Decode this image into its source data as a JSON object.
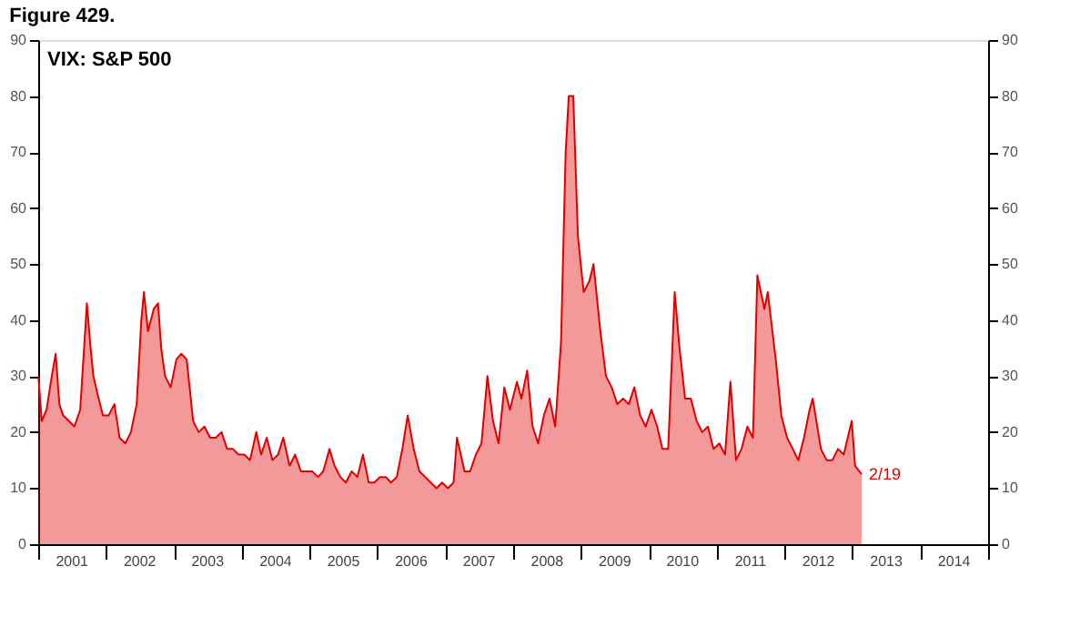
{
  "chart_data": {
    "type": "area",
    "title": "Figure 429.",
    "subtitle": "VIX: S&P 500",
    "x": [
      "2001-01-02",
      "2001-01-20",
      "2001-02-15",
      "2001-03-15",
      "2001-04-05",
      "2001-04-25",
      "2001-05-15",
      "2001-06-15",
      "2001-07-15",
      "2001-08-15",
      "2001-09-20",
      "2001-10-10",
      "2001-10-25",
      "2001-11-15",
      "2001-12-15",
      "2002-01-15",
      "2002-02-15",
      "2002-03-15",
      "2002-04-15",
      "2002-05-15",
      "2002-06-15",
      "2002-07-10",
      "2002-07-24",
      "2002-08-15",
      "2002-09-15",
      "2002-10-08",
      "2002-10-25",
      "2002-11-15",
      "2002-12-15",
      "2003-01-15",
      "2003-02-10",
      "2003-03-11",
      "2003-04-15",
      "2003-05-15",
      "2003-06-15",
      "2003-07-15",
      "2003-08-15",
      "2003-09-15",
      "2003-10-15",
      "2003-11-15",
      "2003-12-15",
      "2004-01-15",
      "2004-02-15",
      "2004-03-20",
      "2004-04-15",
      "2004-05-15",
      "2004-06-15",
      "2004-07-15",
      "2004-08-12",
      "2004-09-15",
      "2004-10-15",
      "2004-11-15",
      "2004-12-15",
      "2005-01-15",
      "2005-02-15",
      "2005-03-15",
      "2005-04-18",
      "2005-05-15",
      "2005-06-15",
      "2005-07-15",
      "2005-08-15",
      "2005-09-15",
      "2005-10-15",
      "2005-11-15",
      "2005-12-15",
      "2006-01-15",
      "2006-02-15",
      "2006-03-15",
      "2006-04-15",
      "2006-05-15",
      "2006-06-13",
      "2006-07-15",
      "2006-08-15",
      "2006-09-15",
      "2006-10-15",
      "2006-11-15",
      "2006-12-15",
      "2007-01-15",
      "2007-02-15",
      "2007-03-05",
      "2007-04-15",
      "2007-05-15",
      "2007-06-15",
      "2007-07-15",
      "2007-08-16",
      "2007-09-15",
      "2007-10-15",
      "2007-11-15",
      "2007-12-15",
      "2008-01-22",
      "2008-02-15",
      "2008-03-17",
      "2008-04-15",
      "2008-05-15",
      "2008-06-15",
      "2008-07-15",
      "2008-08-15",
      "2008-09-15",
      "2008-10-10",
      "2008-10-27",
      "2008-11-20",
      "2008-12-15",
      "2009-01-15",
      "2009-02-15",
      "2009-03-09",
      "2009-04-15",
      "2009-05-15",
      "2009-06-15",
      "2009-07-15",
      "2009-08-15",
      "2009-09-15",
      "2009-10-15",
      "2009-11-15",
      "2009-12-15",
      "2010-01-15",
      "2010-02-15",
      "2010-03-15",
      "2010-04-15",
      "2010-05-20",
      "2010-06-15",
      "2010-07-15",
      "2010-08-15",
      "2010-09-15",
      "2010-10-15",
      "2010-11-15",
      "2010-12-15",
      "2011-01-15",
      "2011-02-15",
      "2011-03-16",
      "2011-04-15",
      "2011-05-15",
      "2011-06-15",
      "2011-07-15",
      "2011-08-08",
      "2011-09-15",
      "2011-10-03",
      "2011-11-15",
      "2011-12-15",
      "2012-01-15",
      "2012-02-15",
      "2012-03-15",
      "2012-04-15",
      "2012-05-15",
      "2012-06-01",
      "2012-07-15",
      "2012-08-15",
      "2012-09-15",
      "2012-10-15",
      "2012-11-15",
      "2012-12-28",
      "2013-01-15",
      "2013-02-19"
    ],
    "series": [
      {
        "color": "#e00000",
        "values": [
          30,
          22,
          24,
          30,
          34,
          25,
          23,
          22,
          21,
          24,
          43,
          35,
          30,
          27,
          23,
          23,
          25,
          19,
          18,
          20,
          25,
          40,
          45,
          38,
          42,
          43,
          35,
          30,
          28,
          33,
          34,
          33,
          22,
          20,
          21,
          19,
          19,
          20,
          17,
          17,
          16,
          16,
          15,
          20,
          16,
          19,
          15,
          16,
          19,
          14,
          16,
          13,
          13,
          13,
          12,
          13,
          17,
          14,
          12,
          11,
          13,
          12,
          16,
          11,
          11,
          12,
          12,
          11,
          12,
          17,
          23,
          17,
          13,
          12,
          11,
          10,
          11,
          10,
          11,
          19,
          13,
          13,
          16,
          18,
          30,
          22,
          18,
          28,
          24,
          29,
          26,
          31,
          21,
          18,
          23,
          26,
          21,
          36,
          70,
          80,
          80,
          55,
          45,
          47,
          50,
          38,
          30,
          28,
          25,
          26,
          25,
          28,
          23,
          21,
          24,
          21,
          17,
          17,
          45,
          35,
          26,
          26,
          22,
          20,
          21,
          17,
          18,
          16,
          29,
          15,
          17,
          21,
          19,
          48,
          42,
          45,
          33,
          23,
          19,
          17,
          15,
          19,
          24,
          26,
          17,
          15,
          15,
          17,
          16,
          22,
          14,
          12.5
        ]
      }
    ],
    "xlim": [
      "2001-01-01",
      "2015-01-01"
    ],
    "xticks": [
      {
        "value": "2001-01-01",
        "label": null
      },
      {
        "value": "2001-07-02",
        "label": "2001"
      },
      {
        "value": "2002-01-01",
        "label": null
      },
      {
        "value": "2002-07-02",
        "label": "2002"
      },
      {
        "value": "2003-01-01",
        "label": null
      },
      {
        "value": "2003-07-02",
        "label": "2003"
      },
      {
        "value": "2004-01-01",
        "label": null
      },
      {
        "value": "2004-07-02",
        "label": "2004"
      },
      {
        "value": "2005-01-01",
        "label": null
      },
      {
        "value": "2005-07-02",
        "label": "2005"
      },
      {
        "value": "2006-01-01",
        "label": null
      },
      {
        "value": "2006-07-02",
        "label": "2006"
      },
      {
        "value": "2007-01-01",
        "label": null
      },
      {
        "value": "2007-07-02",
        "label": "2007"
      },
      {
        "value": "2008-01-01",
        "label": null
      },
      {
        "value": "2008-07-02",
        "label": "2008"
      },
      {
        "value": "2009-01-01",
        "label": null
      },
      {
        "value": "2009-07-02",
        "label": "2009"
      },
      {
        "value": "2010-01-01",
        "label": null
      },
      {
        "value": "2010-07-02",
        "label": "2010"
      },
      {
        "value": "2011-01-01",
        "label": null
      },
      {
        "value": "2011-07-02",
        "label": "2011"
      },
      {
        "value": "2012-01-01",
        "label": null
      },
      {
        "value": "2012-07-02",
        "label": "2012"
      },
      {
        "value": "2013-01-01",
        "label": null
      },
      {
        "value": "2013-07-02",
        "label": "2013"
      },
      {
        "value": "2014-01-01",
        "label": null
      },
      {
        "value": "2014-07-02",
        "label": "2014"
      },
      {
        "value": "2015-01-01",
        "label": null
      }
    ],
    "ylim": [
      0,
      90
    ],
    "yticks": [
      0,
      10,
      20,
      30,
      40,
      50,
      60,
      70,
      80,
      90
    ],
    "y2lim": [
      0,
      90
    ],
    "y2ticks": [
      0,
      10,
      20,
      30,
      40,
      50,
      60,
      70,
      80,
      90
    ],
    "annotations": [
      {
        "text": "2/19",
        "x": "2013-02-19",
        "y": 12.5
      }
    ],
    "grid": false
  }
}
